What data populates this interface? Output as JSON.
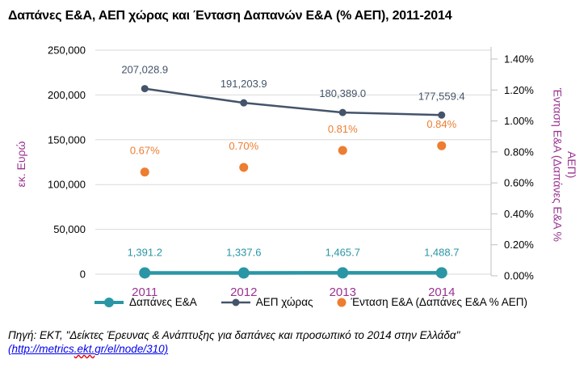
{
  "title": "Δαπάνες Ε&Α, ΑΕΠ χώρας και Ένταση Δαπανών Ε&Α (% ΑΕΠ), 2011-2014",
  "left_axis": {
    "title": "εκ. Ευρώ",
    "ticks": [
      {
        "v": 250000,
        "label": "250,000"
      },
      {
        "v": 200000,
        "label": "200,000"
      },
      {
        "v": 150000,
        "label": "150,000"
      },
      {
        "v": 100000,
        "label": "100,000"
      },
      {
        "v": 50000,
        "label": "50,000"
      },
      {
        "v": 0,
        "label": "0"
      }
    ]
  },
  "right_axis": {
    "title_line1": "Ένταση Ε&Α (Δαπάνες Ε&Α %",
    "title_line2": "ΑΕΠ)",
    "ticks": [
      {
        "v": 1.4,
        "label": "1.40%"
      },
      {
        "v": 1.2,
        "label": "1.20%"
      },
      {
        "v": 1.0,
        "label": "1.00%"
      },
      {
        "v": 0.8,
        "label": "0.80%"
      },
      {
        "v": 0.6,
        "label": "0.60%"
      },
      {
        "v": 0.4,
        "label": "0.40%"
      },
      {
        "v": 0.2,
        "label": "0.20%"
      },
      {
        "v": 0.0,
        "label": "0.00%"
      }
    ]
  },
  "chart_data": {
    "type": "line",
    "title": "Δαπάνες Ε&Α, ΑΕΠ χώρας και Ένταση Δαπανών Ε&Α (% ΑΕΠ), 2011-2014",
    "categories": [
      "2011",
      "2012",
      "2013",
      "2014"
    ],
    "left_ylim": [
      0,
      250000
    ],
    "right_ylim": [
      0,
      1.4
    ],
    "grid": true,
    "legend_position": "bottom",
    "series": [
      {
        "name": "Δαπάνες Ε&Α",
        "axis": "left",
        "color": "#2A96A5",
        "line": true,
        "values": [
          1391.2,
          1337.6,
          1465.7,
          1488.7
        ],
        "labels": [
          "1,391.2",
          "1,337.6",
          "1,465.7",
          "1,488.7"
        ]
      },
      {
        "name": "ΑΕΠ χώρας",
        "axis": "left",
        "color": "#44546A",
        "line": true,
        "values": [
          207028.9,
          191203.9,
          180389.0,
          177559.4
        ],
        "labels": [
          "207,028.9",
          "191,203.9",
          "180,389.0",
          "177,559.4"
        ]
      },
      {
        "name": "Ένταση Ε&Α (Δαπάνες Ε&Α % ΑΕΠ)",
        "axis": "right",
        "color": "#ED7D31",
        "line": false,
        "values": [
          0.67,
          0.7,
          0.81,
          0.84
        ],
        "labels": [
          "0.67%",
          "0.70%",
          "0.81%",
          "0.84%"
        ]
      }
    ]
  },
  "legend": {
    "items": [
      {
        "label": "Δαπάνες Ε&Α"
      },
      {
        "label": "ΑΕΠ χώρας"
      },
      {
        "label": "Ένταση Ε&Α (Δαπάνες Ε&Α % ΑΕΠ)"
      }
    ]
  },
  "footer": {
    "source_line": "Πηγή: ΕΚΤ, \"Δείκτες Έρευνας & Ανάπτυξης για δαπάνες και προσωπικό το 2014 στην Ελλάδα\"",
    "link_part1": "(http://metrics",
    "link_part2": ".ekt.",
    "link_part3": "gr/el/node/310)"
  },
  "colors": {
    "category_labels": "#9A3391",
    "axis_titles": "#9A3391",
    "gridline": "#D9D9D9",
    "axis_line": "#BFBFBF",
    "tick_text": "#000000",
    "title_text": "#000000",
    "link": "#0000EE",
    "spellcheck": "#E00000"
  }
}
